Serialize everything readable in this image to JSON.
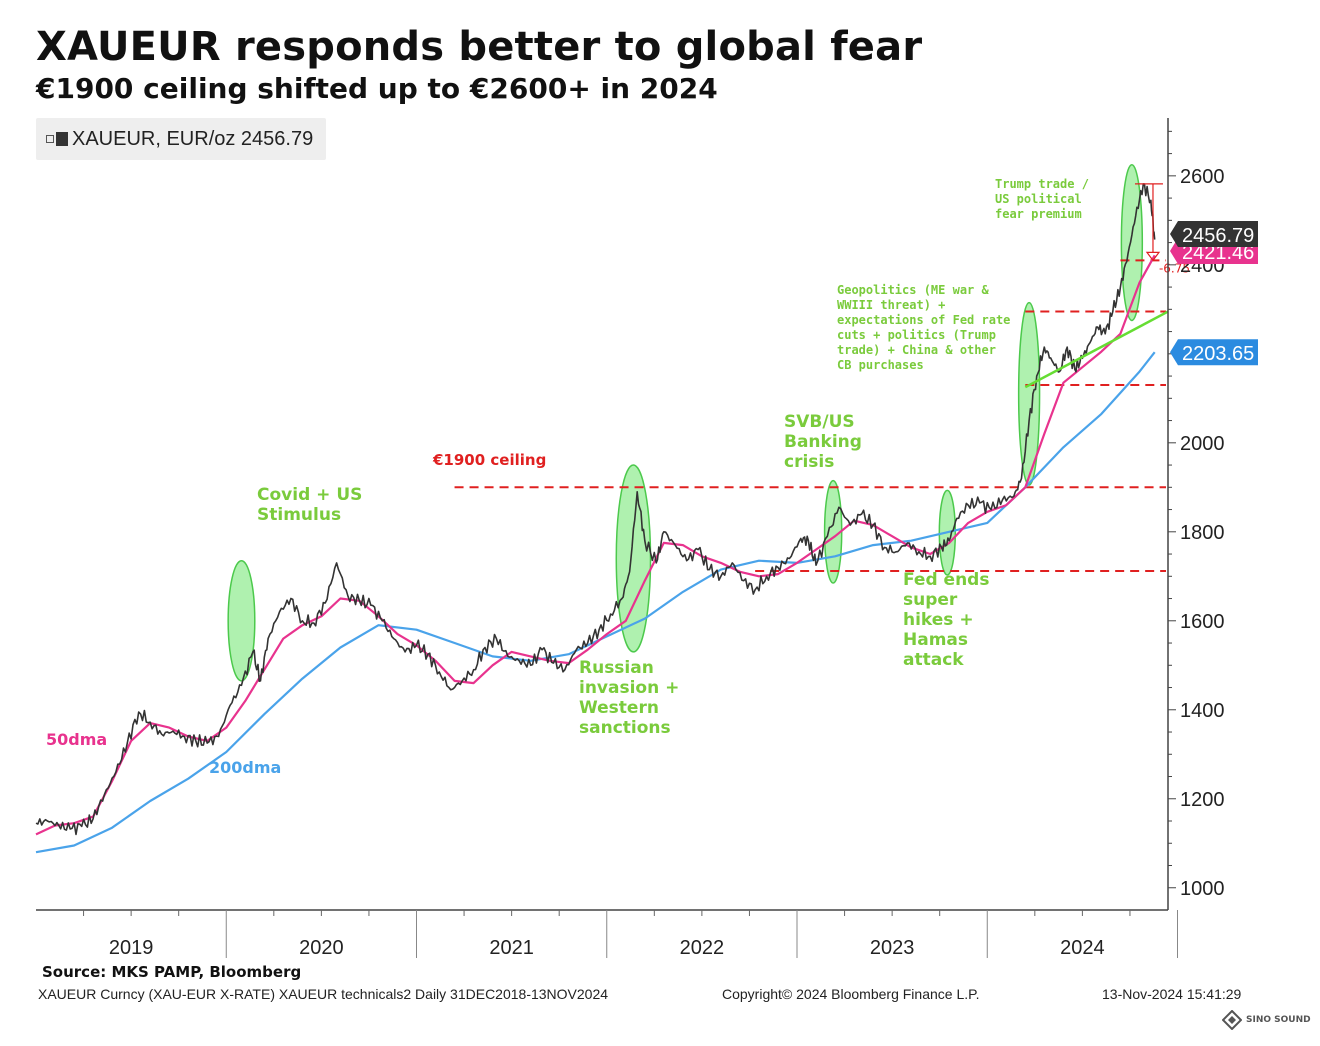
{
  "header": {
    "title": "XAUEUR responds better to global fear",
    "subtitle": "€1900 ceiling shifted up to €2600+ in 2024"
  },
  "legend": {
    "label": "XAUEUR, EUR/oz 2456.79"
  },
  "footer": {
    "source": "Source: MKS PAMP, Bloomberg",
    "ticker_info": "XAUEUR Curncy (XAU-EUR X-RATE) XAUEUR technicals2  Daily 31DEC2018-13NOV2024",
    "copyright": "Copyright© 2024 Bloomberg Finance L.P.",
    "timestamp": "13-Nov-2024 15:41:29",
    "brand": "SINO SOUND"
  },
  "colors": {
    "price": "#333333",
    "dma50": "#e8338e",
    "dma200": "#4aa3ea",
    "annotation": "#7acb3c",
    "resistance": "#e02020",
    "trend": "#66dd33",
    "label_last": "#333333",
    "label_50": "#e8338e",
    "label_200": "#2b8be0"
  },
  "chart_data": {
    "type": "line",
    "xlabel": "",
    "ylabel": "",
    "ylim": [
      950,
      2730
    ],
    "x_domain": [
      2019.0,
      2024.95
    ],
    "y_ticks": [
      1000,
      1200,
      1400,
      1600,
      1800,
      2000,
      2400,
      2600
    ],
    "year_labels": [
      "2019",
      "2020",
      "2021",
      "2022",
      "2023",
      "2024"
    ],
    "grid": false,
    "series": [
      {
        "key": "price",
        "name": "XAUEUR, EUR/oz",
        "points": [
          [
            2019.0,
            1145
          ],
          [
            2019.06,
            1150
          ],
          [
            2019.12,
            1140
          ],
          [
            2019.18,
            1132
          ],
          [
            2019.24,
            1138
          ],
          [
            2019.3,
            1155
          ],
          [
            2019.36,
            1210
          ],
          [
            2019.42,
            1260
          ],
          [
            2019.48,
            1325
          ],
          [
            2019.54,
            1395
          ],
          [
            2019.6,
            1372
          ],
          [
            2019.66,
            1345
          ],
          [
            2019.72,
            1352
          ],
          [
            2019.78,
            1340
          ],
          [
            2019.84,
            1330
          ],
          [
            2019.9,
            1325
          ],
          [
            2019.96,
            1340
          ],
          [
            2020.02,
            1410
          ],
          [
            2020.08,
            1455
          ],
          [
            2020.14,
            1530
          ],
          [
            2020.18,
            1465
          ],
          [
            2020.22,
            1560
          ],
          [
            2020.28,
            1620
          ],
          [
            2020.34,
            1650
          ],
          [
            2020.4,
            1600
          ],
          [
            2020.46,
            1595
          ],
          [
            2020.52,
            1640
          ],
          [
            2020.58,
            1730
          ],
          [
            2020.64,
            1655
          ],
          [
            2020.7,
            1645
          ],
          [
            2020.76,
            1635
          ],
          [
            2020.82,
            1600
          ],
          [
            2020.88,
            1560
          ],
          [
            2020.94,
            1530
          ],
          [
            2021.0,
            1545
          ],
          [
            2021.06,
            1525
          ],
          [
            2021.12,
            1485
          ],
          [
            2021.18,
            1445
          ],
          [
            2021.24,
            1465
          ],
          [
            2021.3,
            1490
          ],
          [
            2021.36,
            1540
          ],
          [
            2021.42,
            1560
          ],
          [
            2021.48,
            1520
          ],
          [
            2021.54,
            1510
          ],
          [
            2021.6,
            1500
          ],
          [
            2021.66,
            1535
          ],
          [
            2021.72,
            1505
          ],
          [
            2021.78,
            1490
          ],
          [
            2021.84,
            1535
          ],
          [
            2021.9,
            1550
          ],
          [
            2021.96,
            1580
          ],
          [
            2022.02,
            1615
          ],
          [
            2022.08,
            1650
          ],
          [
            2022.12,
            1710
          ],
          [
            2022.16,
            1890
          ],
          [
            2022.2,
            1780
          ],
          [
            2022.26,
            1730
          ],
          [
            2022.3,
            1800
          ],
          [
            2022.36,
            1770
          ],
          [
            2022.42,
            1735
          ],
          [
            2022.48,
            1760
          ],
          [
            2022.54,
            1715
          ],
          [
            2022.6,
            1700
          ],
          [
            2022.66,
            1730
          ],
          [
            2022.72,
            1690
          ],
          [
            2022.78,
            1670
          ],
          [
            2022.84,
            1700
          ],
          [
            2022.9,
            1720
          ],
          [
            2022.96,
            1740
          ],
          [
            2023.02,
            1785
          ],
          [
            2023.06,
            1780
          ],
          [
            2023.1,
            1725
          ],
          [
            2023.16,
            1790
          ],
          [
            2023.22,
            1855
          ],
          [
            2023.28,
            1815
          ],
          [
            2023.34,
            1840
          ],
          [
            2023.4,
            1815
          ],
          [
            2023.46,
            1765
          ],
          [
            2023.52,
            1755
          ],
          [
            2023.58,
            1775
          ],
          [
            2023.64,
            1755
          ],
          [
            2023.7,
            1745
          ],
          [
            2023.76,
            1765
          ],
          [
            2023.8,
            1780
          ],
          [
            2023.84,
            1830
          ],
          [
            2023.9,
            1860
          ],
          [
            2023.96,
            1865
          ],
          [
            2024.02,
            1850
          ],
          [
            2024.08,
            1872
          ],
          [
            2024.14,
            1880
          ],
          [
            2024.18,
            1920
          ],
          [
            2024.22,
            2050
          ],
          [
            2024.26,
            2150
          ],
          [
            2024.3,
            2215
          ],
          [
            2024.34,
            2185
          ],
          [
            2024.38,
            2160
          ],
          [
            2024.42,
            2215
          ],
          [
            2024.46,
            2165
          ],
          [
            2024.5,
            2190
          ],
          [
            2024.54,
            2225
          ],
          [
            2024.58,
            2260
          ],
          [
            2024.62,
            2245
          ],
          [
            2024.66,
            2295
          ],
          [
            2024.7,
            2350
          ],
          [
            2024.74,
            2425
          ],
          [
            2024.78,
            2510
          ],
          [
            2024.82,
            2582
          ],
          [
            2024.86,
            2545
          ],
          [
            2024.88,
            2456.79
          ]
        ]
      },
      {
        "key": "dma50",
        "name": "50dma",
        "points": [
          [
            2019.0,
            1120
          ],
          [
            2019.1,
            1140
          ],
          [
            2019.2,
            1145
          ],
          [
            2019.3,
            1160
          ],
          [
            2019.4,
            1240
          ],
          [
            2019.5,
            1330
          ],
          [
            2019.6,
            1370
          ],
          [
            2019.7,
            1360
          ],
          [
            2019.8,
            1340
          ],
          [
            2019.9,
            1330
          ],
          [
            2020.0,
            1360
          ],
          [
            2020.1,
            1420
          ],
          [
            2020.2,
            1490
          ],
          [
            2020.3,
            1560
          ],
          [
            2020.4,
            1590
          ],
          [
            2020.5,
            1610
          ],
          [
            2020.6,
            1650
          ],
          [
            2020.7,
            1645
          ],
          [
            2020.8,
            1610
          ],
          [
            2020.9,
            1570
          ],
          [
            2021.0,
            1545
          ],
          [
            2021.1,
            1510
          ],
          [
            2021.2,
            1465
          ],
          [
            2021.3,
            1460
          ],
          [
            2021.4,
            1500
          ],
          [
            2021.5,
            1530
          ],
          [
            2021.6,
            1520
          ],
          [
            2021.7,
            1510
          ],
          [
            2021.8,
            1505
          ],
          [
            2021.9,
            1535
          ],
          [
            2022.0,
            1570
          ],
          [
            2022.1,
            1600
          ],
          [
            2022.2,
            1690
          ],
          [
            2022.3,
            1775
          ],
          [
            2022.4,
            1770
          ],
          [
            2022.5,
            1745
          ],
          [
            2022.6,
            1730
          ],
          [
            2022.7,
            1710
          ],
          [
            2022.8,
            1700
          ],
          [
            2022.9,
            1705
          ],
          [
            2023.0,
            1730
          ],
          [
            2023.1,
            1760
          ],
          [
            2023.2,
            1790
          ],
          [
            2023.3,
            1825
          ],
          [
            2023.4,
            1815
          ],
          [
            2023.5,
            1790
          ],
          [
            2023.6,
            1765
          ],
          [
            2023.7,
            1750
          ],
          [
            2023.8,
            1775
          ],
          [
            2023.9,
            1820
          ],
          [
            2024.0,
            1845
          ],
          [
            2024.1,
            1860
          ],
          [
            2024.2,
            1900
          ],
          [
            2024.3,
            2020
          ],
          [
            2024.4,
            2135
          ],
          [
            2024.5,
            2170
          ],
          [
            2024.6,
            2205
          ],
          [
            2024.7,
            2245
          ],
          [
            2024.8,
            2360
          ],
          [
            2024.88,
            2421.46
          ]
        ]
      },
      {
        "key": "dma200",
        "name": "200dma",
        "points": [
          [
            2019.0,
            1080
          ],
          [
            2019.2,
            1095
          ],
          [
            2019.4,
            1135
          ],
          [
            2019.6,
            1195
          ],
          [
            2019.8,
            1245
          ],
          [
            2020.0,
            1305
          ],
          [
            2020.2,
            1390
          ],
          [
            2020.4,
            1470
          ],
          [
            2020.6,
            1540
          ],
          [
            2020.8,
            1590
          ],
          [
            2021.0,
            1580
          ],
          [
            2021.2,
            1550
          ],
          [
            2021.4,
            1520
          ],
          [
            2021.6,
            1510
          ],
          [
            2021.8,
            1525
          ],
          [
            2022.0,
            1565
          ],
          [
            2022.2,
            1605
          ],
          [
            2022.4,
            1665
          ],
          [
            2022.6,
            1715
          ],
          [
            2022.8,
            1735
          ],
          [
            2023.0,
            1730
          ],
          [
            2023.2,
            1745
          ],
          [
            2023.4,
            1770
          ],
          [
            2023.6,
            1780
          ],
          [
            2023.8,
            1800
          ],
          [
            2024.0,
            1820
          ],
          [
            2024.2,
            1900
          ],
          [
            2024.4,
            1990
          ],
          [
            2024.6,
            2065
          ],
          [
            2024.8,
            2160
          ],
          [
            2024.88,
            2203.65
          ]
        ]
      }
    ],
    "last_values": {
      "price": "2456.79",
      "dma50": "2421.46",
      "dma200": "2203.65"
    },
    "levels": [
      {
        "value": 1900,
        "x_start": 2021.2,
        "x_end": 2024.95
      },
      {
        "value": 1712,
        "x_start": 2022.78,
        "x_end": 2024.95
      },
      {
        "value": 2130,
        "x_start": 2024.2,
        "x_end": 2024.95
      },
      {
        "value": 2295,
        "x_start": 2024.2,
        "x_end": 2024.95
      },
      {
        "value": 2410,
        "x_start": 2024.7,
        "x_end": 2024.95
      }
    ],
    "trendline": [
      [
        2024.2,
        2125
      ],
      [
        2024.95,
        2295
      ]
    ],
    "drawdown_marker": {
      "x": 2024.85,
      "y_top": 2582,
      "y_bottom": 2410,
      "label": "-6.75"
    },
    "highlight_ellipses": [
      {
        "x": 2020.08,
        "y": 1600,
        "rx": 0.07,
        "ry": 135
      },
      {
        "x": 2022.14,
        "y": 1740,
        "rx": 0.09,
        "ry": 210
      },
      {
        "x": 2023.19,
        "y": 1800,
        "rx": 0.045,
        "ry": 115
      },
      {
        "x": 2023.79,
        "y": 1798,
        "rx": 0.042,
        "ry": 95
      },
      {
        "x": 2024.22,
        "y": 2110,
        "rx": 0.055,
        "ry": 205
      },
      {
        "x": 2024.76,
        "y": 2450,
        "rx": 0.055,
        "ry": 175
      }
    ],
    "annotations": [
      {
        "key": "covid",
        "lines": [
          "Covid + US",
          "Stimulus"
        ]
      },
      {
        "key": "russia",
        "lines": [
          "Russian",
          "invasion +",
          "Western",
          "sanctions"
        ]
      },
      {
        "key": "svb",
        "lines": [
          "SVB/US",
          "Banking",
          "crisis"
        ]
      },
      {
        "key": "fed",
        "lines": [
          "Fed ends",
          "super",
          "hikes +",
          "Hamas",
          "attack"
        ]
      },
      {
        "key": "geo",
        "lines": [
          "Geopolitics (ME war &",
          "WWIII threat) +",
          "expectations of Fed rate",
          "cuts + politics (Trump",
          "trade) + China & other",
          "CB purchases"
        ]
      },
      {
        "key": "trump",
        "lines": [
          "Trump trade /",
          "US political",
          "fear premium"
        ]
      }
    ],
    "series_labels": {
      "dma50": "50dma",
      "dma200": "200dma",
      "ceiling": "€1900 ceiling"
    }
  }
}
